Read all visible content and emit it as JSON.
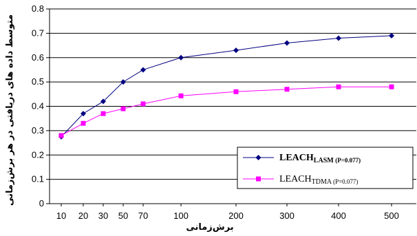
{
  "chart_data": {
    "type": "line",
    "title": "",
    "xlabel": "برش‌زمانی",
    "ylabel": "متوسط داده های دریافتی در هر برش‌زمانی",
    "x_tick_labels": [
      "10",
      "20",
      "30",
      "50",
      "70",
      "100",
      "200",
      "300",
      "400",
      "500"
    ],
    "ylim": [
      0,
      0.8
    ],
    "y_ticks": [
      "0",
      "0.1",
      "0.2",
      "0.3",
      "0.4",
      "0.5",
      "0.6",
      "0.7",
      "0.8"
    ],
    "grid": true,
    "legend_position": "bottom-right",
    "series": [
      {
        "name": "LEACH",
        "name_sub": "LASM",
        "name_param": "(P=0.077)",
        "marker": "diamond",
        "color": "#000080",
        "values": [
          0.275,
          0.37,
          0.42,
          0.5,
          0.55,
          0.6,
          0.63,
          0.66,
          0.68,
          0.69
        ]
      },
      {
        "name": "LEACH",
        "name_sub": "TDMA",
        "name_param": "(P=0.077)",
        "marker": "square",
        "color": "#ff00ff",
        "values": [
          0.28,
          0.33,
          0.37,
          0.39,
          0.41,
          0.443,
          0.46,
          0.47,
          0.48,
          0.48
        ]
      }
    ]
  }
}
